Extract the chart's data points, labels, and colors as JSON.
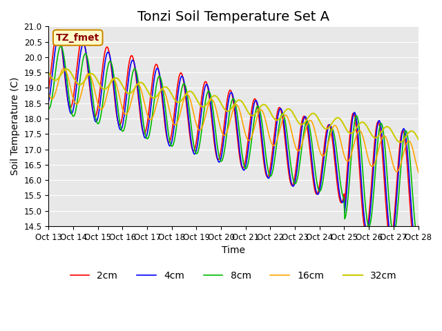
{
  "title": "Tonzi Soil Temperature Set A",
  "ylabel": "Soil Temperature (C)",
  "xlabel": "Time",
  "ylim": [
    14.5,
    21.0
  ],
  "yticks": [
    14.5,
    15.0,
    15.5,
    16.0,
    16.5,
    17.0,
    17.5,
    18.0,
    18.5,
    19.0,
    19.5,
    20.0,
    20.5,
    21.0
  ],
  "colors": {
    "2cm": "#FF0000",
    "4cm": "#0000FF",
    "8cm": "#00BB00",
    "16cm": "#FFA500",
    "32cm": "#CCCC00"
  },
  "legend_labels": [
    "2cm",
    "4cm",
    "8cm",
    "16cm",
    "32cm"
  ],
  "annotation_text": "TZ_fmet",
  "annotation_bg": "#FFFFCC",
  "annotation_border": "#CC8800",
  "plot_bg": "#E8E8E8",
  "xtick_labels": [
    "Oct 13",
    "Oct 14",
    "Oct 15",
    "Oct 16",
    "Oct 17",
    "Oct 18",
    "Oct 19",
    "Oct 20",
    "Oct 21",
    "Oct 22",
    "Oct 23",
    "Oct 24",
    "Oct 25",
    "Oct 26",
    "Oct 27",
    "Oct 28"
  ],
  "n_days": 16,
  "title_fontsize": 14,
  "label_fontsize": 10,
  "tick_fontsize": 8.5,
  "legend_fontsize": 10
}
